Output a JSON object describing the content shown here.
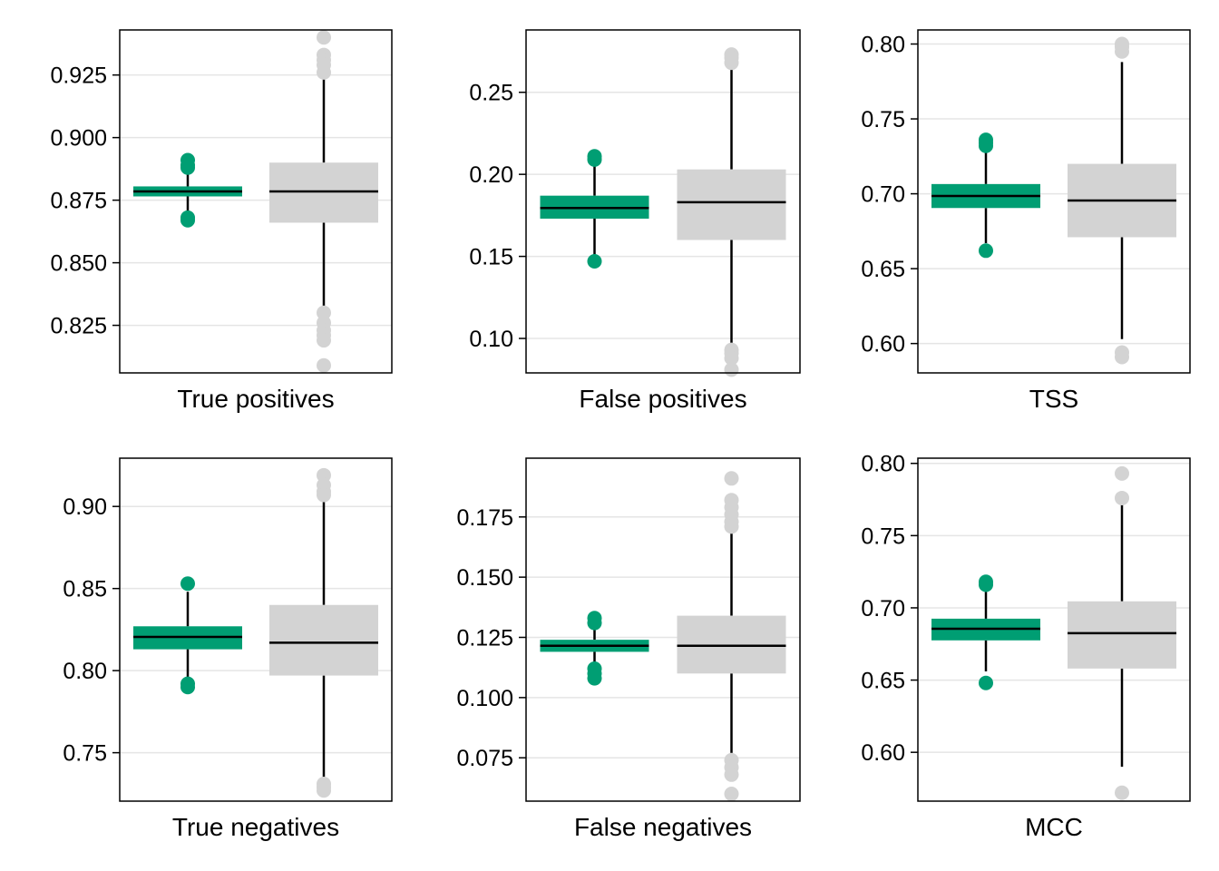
{
  "colors": {
    "model": "#009E73",
    "baseline": "#D3D3D3",
    "median": "#000000",
    "grid": "#E5E5E5",
    "frame": "#000000"
  },
  "chart_data": [
    {
      "type": "box",
      "xlabel": "True positives",
      "ylim": [
        0.806,
        0.943
      ],
      "grid": true,
      "yticks": [
        0.825,
        0.85,
        0.875,
        0.9,
        0.925
      ],
      "yticklabels": [
        "0.825",
        "0.850",
        "0.875",
        "0.900",
        "0.925"
      ],
      "boxes": [
        {
          "color": "model",
          "q1": 0.8765,
          "median": 0.8785,
          "q3": 0.8805,
          "whisker_low": 0.87,
          "whisker_high": 0.887,
          "outliers": [
            0.891,
            0.889,
            0.888,
            0.868,
            0.867
          ]
        },
        {
          "color": "baseline",
          "q1": 0.866,
          "median": 0.8785,
          "q3": 0.89,
          "whisker_low": 0.832,
          "whisker_high": 0.925,
          "outliers": [
            0.94,
            0.933,
            0.931,
            0.929,
            0.926,
            0.83,
            0.826,
            0.823,
            0.821,
            0.819,
            0.809
          ]
        }
      ]
    },
    {
      "type": "box",
      "xlabel": "False positives",
      "ylim": [
        0.079,
        0.288
      ],
      "grid": true,
      "yticks": [
        0.1,
        0.15,
        0.2,
        0.25
      ],
      "yticklabels": [
        "0.10",
        "0.15",
        "0.20",
        "0.25"
      ],
      "boxes": [
        {
          "color": "model",
          "q1": 0.173,
          "median": 0.1795,
          "q3": 0.187,
          "whisker_low": 0.15,
          "whisker_high": 0.207,
          "outliers": [
            0.211,
            0.209,
            0.147
          ]
        },
        {
          "color": "baseline",
          "q1": 0.16,
          "median": 0.183,
          "q3": 0.203,
          "whisker_low": 0.095,
          "whisker_high": 0.264,
          "outliers": [
            0.273,
            0.271,
            0.268,
            0.093,
            0.091,
            0.088,
            0.081
          ]
        }
      ]
    },
    {
      "type": "box",
      "xlabel": "TSS",
      "ylim": [
        0.5804,
        0.8094
      ],
      "grid": true,
      "yticks": [
        0.6,
        0.65,
        0.7,
        0.75,
        0.8
      ],
      "yticklabels": [
        "0.60",
        "0.65",
        "0.70",
        "0.75",
        "0.80"
      ],
      "boxes": [
        {
          "color": "model",
          "q1": 0.6905,
          "median": 0.6985,
          "q3": 0.7065,
          "whisker_low": 0.667,
          "whisker_high": 0.729,
          "outliers": [
            0.736,
            0.734,
            0.732,
            0.662
          ]
        },
        {
          "color": "baseline",
          "q1": 0.671,
          "median": 0.6955,
          "q3": 0.72,
          "whisker_low": 0.603,
          "whisker_high": 0.788,
          "outliers": [
            0.8,
            0.798,
            0.795,
            0.594,
            0.591
          ]
        }
      ]
    },
    {
      "type": "box",
      "xlabel": "True negatives",
      "ylim": [
        0.7205,
        0.9294
      ],
      "grid": true,
      "yticks": [
        0.75,
        0.8,
        0.85,
        0.9
      ],
      "yticklabels": [
        "0.75",
        "0.80",
        "0.85",
        "0.90"
      ],
      "boxes": [
        {
          "color": "model",
          "q1": 0.813,
          "median": 0.8205,
          "q3": 0.827,
          "whisker_low": 0.795,
          "whisker_high": 0.848,
          "outliers": [
            0.853,
            0.792,
            0.79
          ]
        },
        {
          "color": "baseline",
          "q1": 0.797,
          "median": 0.817,
          "q3": 0.84,
          "whisker_low": 0.735,
          "whisker_high": 0.903,
          "outliers": [
            0.919,
            0.913,
            0.909,
            0.907,
            0.731,
            0.729,
            0.727
          ]
        }
      ]
    },
    {
      "type": "box",
      "xlabel": "False negatives",
      "ylim": [
        0.057,
        0.1994
      ],
      "grid": true,
      "yticks": [
        0.075,
        0.1,
        0.125,
        0.15,
        0.175
      ],
      "yticklabels": [
        "0.075",
        "0.100",
        "0.125",
        "0.150",
        "0.175"
      ],
      "boxes": [
        {
          "color": "model",
          "q1": 0.119,
          "median": 0.1215,
          "q3": 0.124,
          "whisker_low": 0.114,
          "whisker_high": 0.13,
          "outliers": [
            0.133,
            0.131,
            0.112,
            0.11,
            0.108
          ]
        },
        {
          "color": "baseline",
          "q1": 0.11,
          "median": 0.1215,
          "q3": 0.134,
          "whisker_low": 0.077,
          "whisker_high": 0.169,
          "outliers": [
            0.191,
            0.182,
            0.179,
            0.176,
            0.173,
            0.171,
            0.074,
            0.071,
            0.068,
            0.06
          ]
        }
      ]
    },
    {
      "type": "box",
      "xlabel": "MCC",
      "ylim": [
        0.5662,
        0.8036
      ],
      "grid": true,
      "yticks": [
        0.6,
        0.65,
        0.7,
        0.75,
        0.8
      ],
      "yticklabels": [
        "0.60",
        "0.65",
        "0.70",
        "0.75",
        "0.80"
      ],
      "boxes": [
        {
          "color": "model",
          "q1": 0.6775,
          "median": 0.6855,
          "q3": 0.6925,
          "whisker_low": 0.656,
          "whisker_high": 0.711,
          "outliers": [
            0.718,
            0.716,
            0.648
          ]
        },
        {
          "color": "baseline",
          "q1": 0.658,
          "median": 0.6825,
          "q3": 0.7045,
          "whisker_low": 0.59,
          "whisker_high": 0.773,
          "outliers": [
            0.793,
            0.776,
            0.572
          ]
        }
      ]
    }
  ]
}
